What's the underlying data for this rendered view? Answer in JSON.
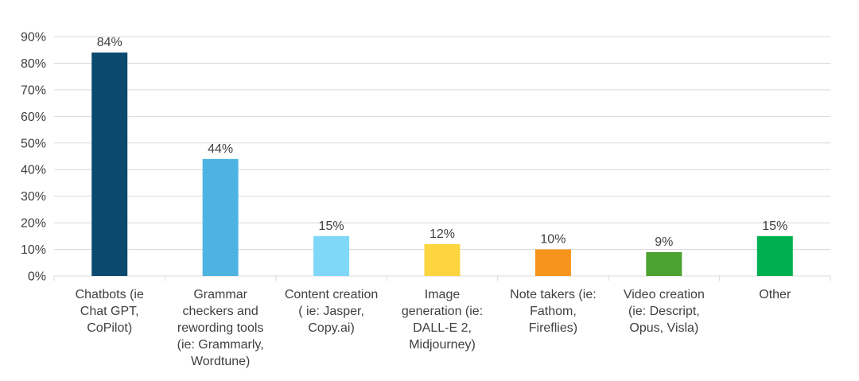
{
  "chart_data": {
    "type": "bar",
    "categories": [
      [
        "Chatbots (ie",
        "Chat GPT,",
        "CoPilot)"
      ],
      [
        "Grammar",
        "checkers and",
        "rewording tools",
        "(ie: Grammarly,",
        "Wordtune)"
      ],
      [
        "Content creation",
        "( ie: Jasper,",
        "Copy.ai)"
      ],
      [
        "Image",
        "generation (ie:",
        "DALL-E 2,",
        "Midjourney)"
      ],
      [
        "Note takers (ie:",
        "Fathom,",
        "Fireflies)"
      ],
      [
        "Video creation",
        "(ie: Descript,",
        "Opus, Visla)"
      ],
      [
        "Other"
      ]
    ],
    "values": [
      84,
      44,
      15,
      12,
      10,
      9,
      15
    ],
    "data_labels": [
      "84%",
      "44%",
      "15%",
      "12%",
      "10%",
      "9%",
      "15%"
    ],
    "colors": [
      "#0b4a6e",
      "#4fb3e2",
      "#7fd8f8",
      "#fcd53f",
      "#f7941d",
      "#4ca22f",
      "#00b050"
    ],
    "y_ticks": [
      0,
      10,
      20,
      30,
      40,
      50,
      60,
      70,
      80,
      90
    ],
    "y_tick_labels": [
      "0%",
      "10%",
      "20%",
      "30%",
      "40%",
      "50%",
      "60%",
      "70%",
      "80%",
      "90%"
    ],
    "ylim": [
      0,
      90
    ],
    "grid": true,
    "gridline_color": "#d9d9d9",
    "text_color": "#404040",
    "title": "",
    "xlabel": "",
    "ylabel": ""
  }
}
